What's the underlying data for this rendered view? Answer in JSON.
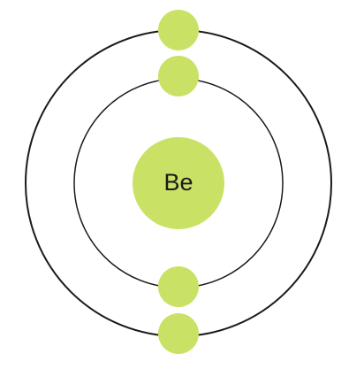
{
  "atom": {
    "symbol": "Be",
    "shells": [
      {
        "electrons": 2
      },
      {
        "electrons": 2
      }
    ]
  },
  "colors": {
    "nucleus": "#c9e265",
    "electron": "#c9e265",
    "orbit": "#1a1a1a",
    "label": "#1a1a1a",
    "background": "#ffffff"
  }
}
